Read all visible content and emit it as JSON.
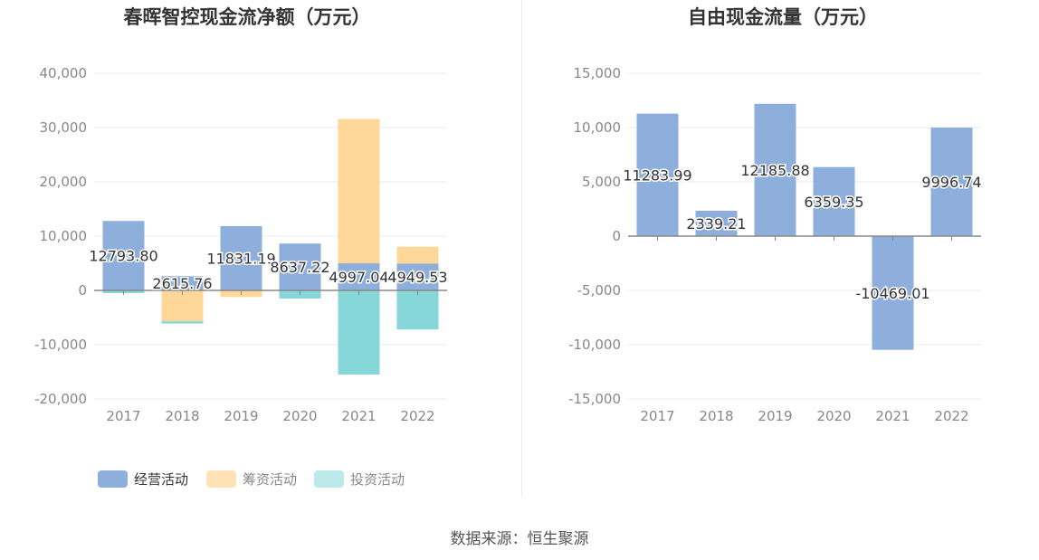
{
  "chart_data": [
    {
      "type": "bar",
      "stacked": true,
      "title": "春晖智控现金流净额（万元）",
      "categories": [
        "2017",
        "2018",
        "2019",
        "2020",
        "2021",
        "2022"
      ],
      "ylim": [
        -20000,
        40000
      ],
      "yticks": [
        "40,000",
        "30,000",
        "20,000",
        "10,000",
        "0",
        "-10,000",
        "-20,000"
      ],
      "ytick_values": [
        40000,
        30000,
        20000,
        10000,
        0,
        -10000,
        -20000
      ],
      "grid": true,
      "legend": "bottom-left",
      "series": [
        {
          "name": "经营活动",
          "color": "#8eaedc",
          "values": [
            12793.8,
            2615.76,
            11831.19,
            8637.22,
            4997.04,
            4949.53
          ]
        },
        {
          "name": "筹资活动",
          "color": "#ffd899",
          "values": [
            0,
            -5700,
            -1200,
            0,
            26600,
            3100
          ]
        },
        {
          "name": "投资活动",
          "color": "#87d6d9",
          "values": [
            -500,
            -400,
            0,
            -1500,
            -15500,
            -7200
          ]
        }
      ],
      "data_labels": [
        "12793.80",
        "2615.76",
        "11831.19",
        "8637.22",
        "4997.04",
        "4949.53"
      ],
      "legend_colors": [
        "#8eaedc",
        "#ffe3b7",
        "#bde9eb"
      ]
    },
    {
      "type": "bar",
      "title": "自由现金流量（万元）",
      "categories": [
        "2017",
        "2018",
        "2019",
        "2020",
        "2021",
        "2022"
      ],
      "ylim": [
        -15000,
        15000
      ],
      "yticks": [
        "15,000",
        "10,000",
        "5,000",
        "0",
        "-5,000",
        "-10,000",
        "-15,000"
      ],
      "ytick_values": [
        15000,
        10000,
        5000,
        0,
        -5000,
        -10000,
        -15000
      ],
      "grid": true,
      "color": "#8eaedc",
      "values": [
        11283.99,
        2339.21,
        12185.88,
        6359.35,
        -10469.01,
        9996.74
      ],
      "data_labels": [
        "11283.99",
        "2339.21",
        "12185.88",
        "6359.35",
        "-10469.01",
        "9996.74"
      ]
    }
  ],
  "source_text": "数据来源：恒生聚源"
}
